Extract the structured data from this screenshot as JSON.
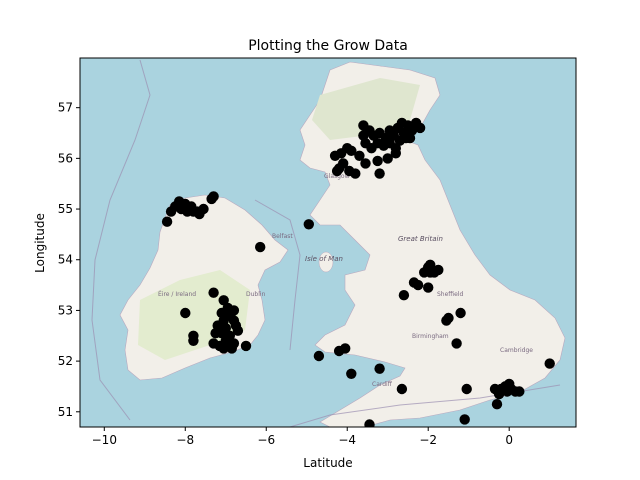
{
  "chart_data": {
    "type": "scatter",
    "title": "Plotting the Grow Data",
    "xlabel": "Latitude",
    "ylabel": "Longitude",
    "xlim": [
      -10.6,
      1.65
    ],
    "ylim": [
      50.7,
      57.98
    ],
    "xticks": [
      -10,
      -8,
      -6,
      -4,
      -2,
      0
    ],
    "yticks": [
      51,
      52,
      53,
      54,
      55,
      56,
      57
    ],
    "grid": false,
    "legend": "none",
    "marker_color": "#000000",
    "background": "openstreetmap-tiles",
    "points": [
      [
        -3.45,
        56.55
      ],
      [
        -3.35,
        56.45
      ],
      [
        -3.2,
        56.5
      ],
      [
        -3.05,
        56.4
      ],
      [
        -2.95,
        56.55
      ],
      [
        -2.85,
        56.45
      ],
      [
        -2.75,
        56.6
      ],
      [
        -2.6,
        56.5
      ],
      [
        -2.5,
        56.65
      ],
      [
        -2.4,
        56.55
      ],
      [
        -2.3,
        56.7
      ],
      [
        -2.2,
        56.6
      ],
      [
        -3.55,
        56.3
      ],
      [
        -3.4,
        56.2
      ],
      [
        -3.25,
        56.3
      ],
      [
        -3.1,
        56.25
      ],
      [
        -2.95,
        56.3
      ],
      [
        -2.8,
        56.2
      ],
      [
        -2.7,
        56.35
      ],
      [
        -2.55,
        56.4
      ],
      [
        -3.6,
        56.45
      ],
      [
        -3.7,
        56.05
      ],
      [
        -3.9,
        56.15
      ],
      [
        -4.0,
        56.2
      ],
      [
        -4.15,
        56.1
      ],
      [
        -4.3,
        56.05
      ],
      [
        -4.1,
        55.9
      ],
      [
        -4.2,
        55.8
      ],
      [
        -3.95,
        55.75
      ],
      [
        -3.8,
        55.7
      ],
      [
        -3.55,
        55.9
      ],
      [
        -3.25,
        55.95
      ],
      [
        -3.2,
        55.7
      ],
      [
        -3.0,
        56.0
      ],
      [
        -2.8,
        56.1
      ],
      [
        -3.6,
        56.65
      ],
      [
        -2.45,
        56.4
      ],
      [
        -2.65,
        56.7
      ],
      [
        -4.25,
        55.75
      ],
      [
        -8.45,
        54.75
      ],
      [
        -8.35,
        54.95
      ],
      [
        -8.25,
        55.05
      ],
      [
        -8.15,
        55.15
      ],
      [
        -8.0,
        55.1
      ],
      [
        -7.85,
        55.05
      ],
      [
        -7.8,
        54.95
      ],
      [
        -7.65,
        54.9
      ],
      [
        -7.55,
        55.0
      ],
      [
        -7.3,
        55.25
      ],
      [
        -7.35,
        55.2
      ],
      [
        -7.95,
        54.95
      ],
      [
        -8.1,
        55.0
      ],
      [
        -7.7,
        54.95
      ],
      [
        -6.15,
        54.25
      ],
      [
        -4.95,
        54.7
      ],
      [
        -7.3,
        53.35
      ],
      [
        -7.05,
        53.2
      ],
      [
        -6.95,
        53.05
      ],
      [
        -6.9,
        52.9
      ],
      [
        -6.8,
        52.8
      ],
      [
        -6.75,
        52.7
      ],
      [
        -6.7,
        52.6
      ],
      [
        -7.0,
        52.65
      ],
      [
        -7.1,
        52.55
      ],
      [
        -7.25,
        52.55
      ],
      [
        -7.0,
        52.4
      ],
      [
        -6.95,
        52.3
      ],
      [
        -6.8,
        52.35
      ],
      [
        -7.15,
        52.3
      ],
      [
        -7.3,
        52.35
      ],
      [
        -6.5,
        52.3
      ],
      [
        -7.05,
        52.25
      ],
      [
        -6.85,
        52.25
      ],
      [
        -6.9,
        52.5
      ],
      [
        -7.2,
        52.7
      ],
      [
        -7.05,
        52.8
      ],
      [
        -6.95,
        52.95
      ],
      [
        -6.8,
        53.0
      ],
      [
        -7.1,
        52.95
      ],
      [
        -8.0,
        52.95
      ],
      [
        -7.8,
        52.5
      ],
      [
        -7.8,
        52.4
      ],
      [
        -2.0,
        53.85
      ],
      [
        -1.9,
        53.8
      ],
      [
        -1.85,
        53.75
      ],
      [
        -1.95,
        53.75
      ],
      [
        -2.1,
        53.75
      ],
      [
        -1.75,
        53.8
      ],
      [
        -1.95,
        53.9
      ],
      [
        -2.35,
        53.55
      ],
      [
        -2.25,
        53.5
      ],
      [
        -2.0,
        53.45
      ],
      [
        -2.6,
        53.3
      ],
      [
        -1.55,
        52.8
      ],
      [
        -1.5,
        52.85
      ],
      [
        -1.2,
        52.95
      ],
      [
        -1.3,
        52.35
      ],
      [
        -4.2,
        52.2
      ],
      [
        -4.05,
        52.25
      ],
      [
        -4.7,
        52.1
      ],
      [
        -3.9,
        51.75
      ],
      [
        -3.2,
        51.85
      ],
      [
        -2.65,
        51.45
      ],
      [
        -3.45,
        50.75
      ],
      [
        -1.05,
        51.45
      ],
      [
        -1.1,
        50.85
      ],
      [
        -0.35,
        51.45
      ],
      [
        -0.25,
        51.35
      ],
      [
        -0.2,
        51.45
      ],
      [
        -0.3,
        51.15
      ],
      [
        -0.1,
        51.5
      ],
      [
        -0.05,
        51.4
      ],
      [
        0.0,
        51.55
      ],
      [
        0.05,
        51.45
      ],
      [
        0.15,
        51.4
      ],
      [
        0.25,
        51.4
      ],
      [
        1.0,
        51.95
      ]
    ]
  }
}
